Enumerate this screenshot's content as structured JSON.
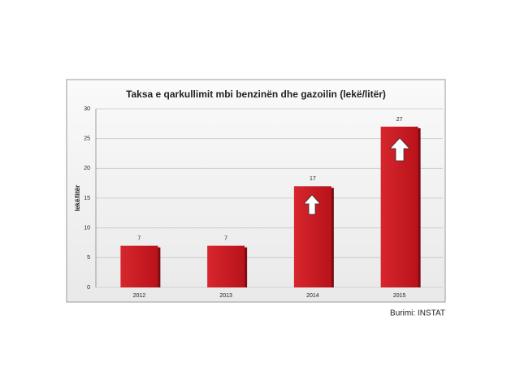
{
  "chart_data": {
    "type": "bar",
    "title": "Taksa e qarkullimit mbi benzinën dhe gazoilin (lekë/litër)",
    "y_label": "lekë/litër",
    "source": "Burimi: INSTAT",
    "categories": [
      "2012",
      "2013",
      "2014",
      "2015"
    ],
    "values": [
      7,
      7,
      17,
      27
    ],
    "color": "#cc1f26",
    "ylim": [
      0,
      30
    ],
    "yticks": [
      0,
      5,
      10,
      15,
      20,
      25,
      30
    ],
    "grid": true
  }
}
